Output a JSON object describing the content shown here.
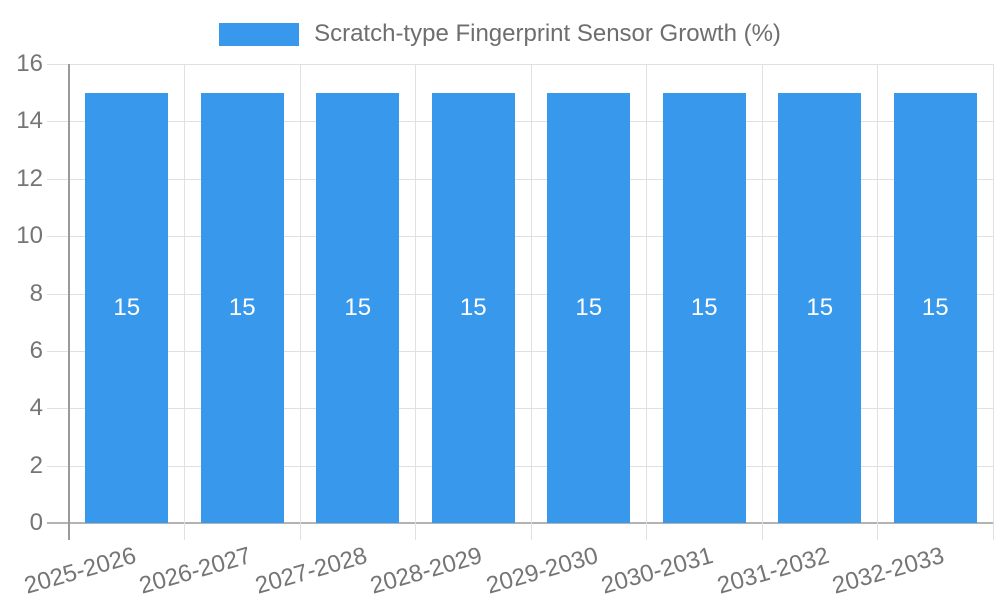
{
  "legend": {
    "label": "Scratch-type Fingerprint Sensor Growth (%)"
  },
  "chart_data": {
    "type": "bar",
    "title": "Scratch-type Fingerprint Sensor Growth (%)",
    "legend_position": "top",
    "categories": [
      "2025-2026",
      "2026-2027",
      "2027-2028",
      "2028-2029",
      "2029-2030",
      "2030-2031",
      "2031-2032",
      "2032-2033"
    ],
    "series": [
      {
        "name": "Scratch-type Fingerprint Sensor Growth (%)",
        "values": [
          15,
          15,
          15,
          15,
          15,
          15,
          15,
          15
        ]
      }
    ],
    "value_labels": [
      "15",
      "15",
      "15",
      "15",
      "15",
      "15",
      "15",
      "15"
    ],
    "ylim": [
      0,
      16
    ],
    "yticks": [
      0,
      2,
      4,
      6,
      8,
      10,
      12,
      14,
      16
    ],
    "grid": true,
    "x_label_rotation_deg": -16,
    "colors": {
      "bar": "#3798EC",
      "grid_line": "#e0e0e0",
      "baseline": "#b3b3b3",
      "y_axis_line": "#9a9a9a",
      "tick_text": "#757575",
      "bar_value_text": "#ffffff",
      "legend_text": "#6e6e6e",
      "background": "#ffffff"
    }
  }
}
